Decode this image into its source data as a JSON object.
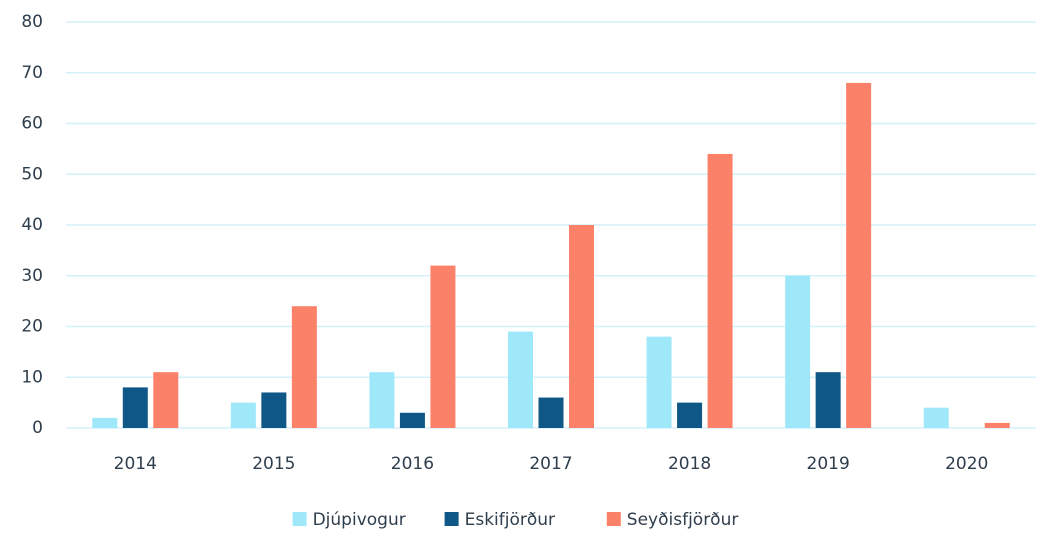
{
  "chart_data": {
    "type": "bar",
    "categories": [
      "2014",
      "2015",
      "2016",
      "2017",
      "2018",
      "2019",
      "2020"
    ],
    "series": [
      {
        "name": "Djúpivogur",
        "color": "#9fe8fa",
        "values": [
          2,
          5,
          11,
          19,
          18,
          30,
          4
        ]
      },
      {
        "name": "Eskifjörður",
        "color": "#0e5786",
        "values": [
          8,
          7,
          3,
          6,
          5,
          11,
          0
        ]
      },
      {
        "name": "Seyðisfjörður",
        "color": "#fb8169",
        "values": [
          11,
          24,
          32,
          40,
          54,
          68,
          1
        ]
      }
    ],
    "ylim": [
      0,
      80
    ],
    "yticks": [
      0,
      10,
      20,
      30,
      40,
      50,
      60,
      70,
      80
    ],
    "grid": true,
    "legend": "bottom"
  }
}
